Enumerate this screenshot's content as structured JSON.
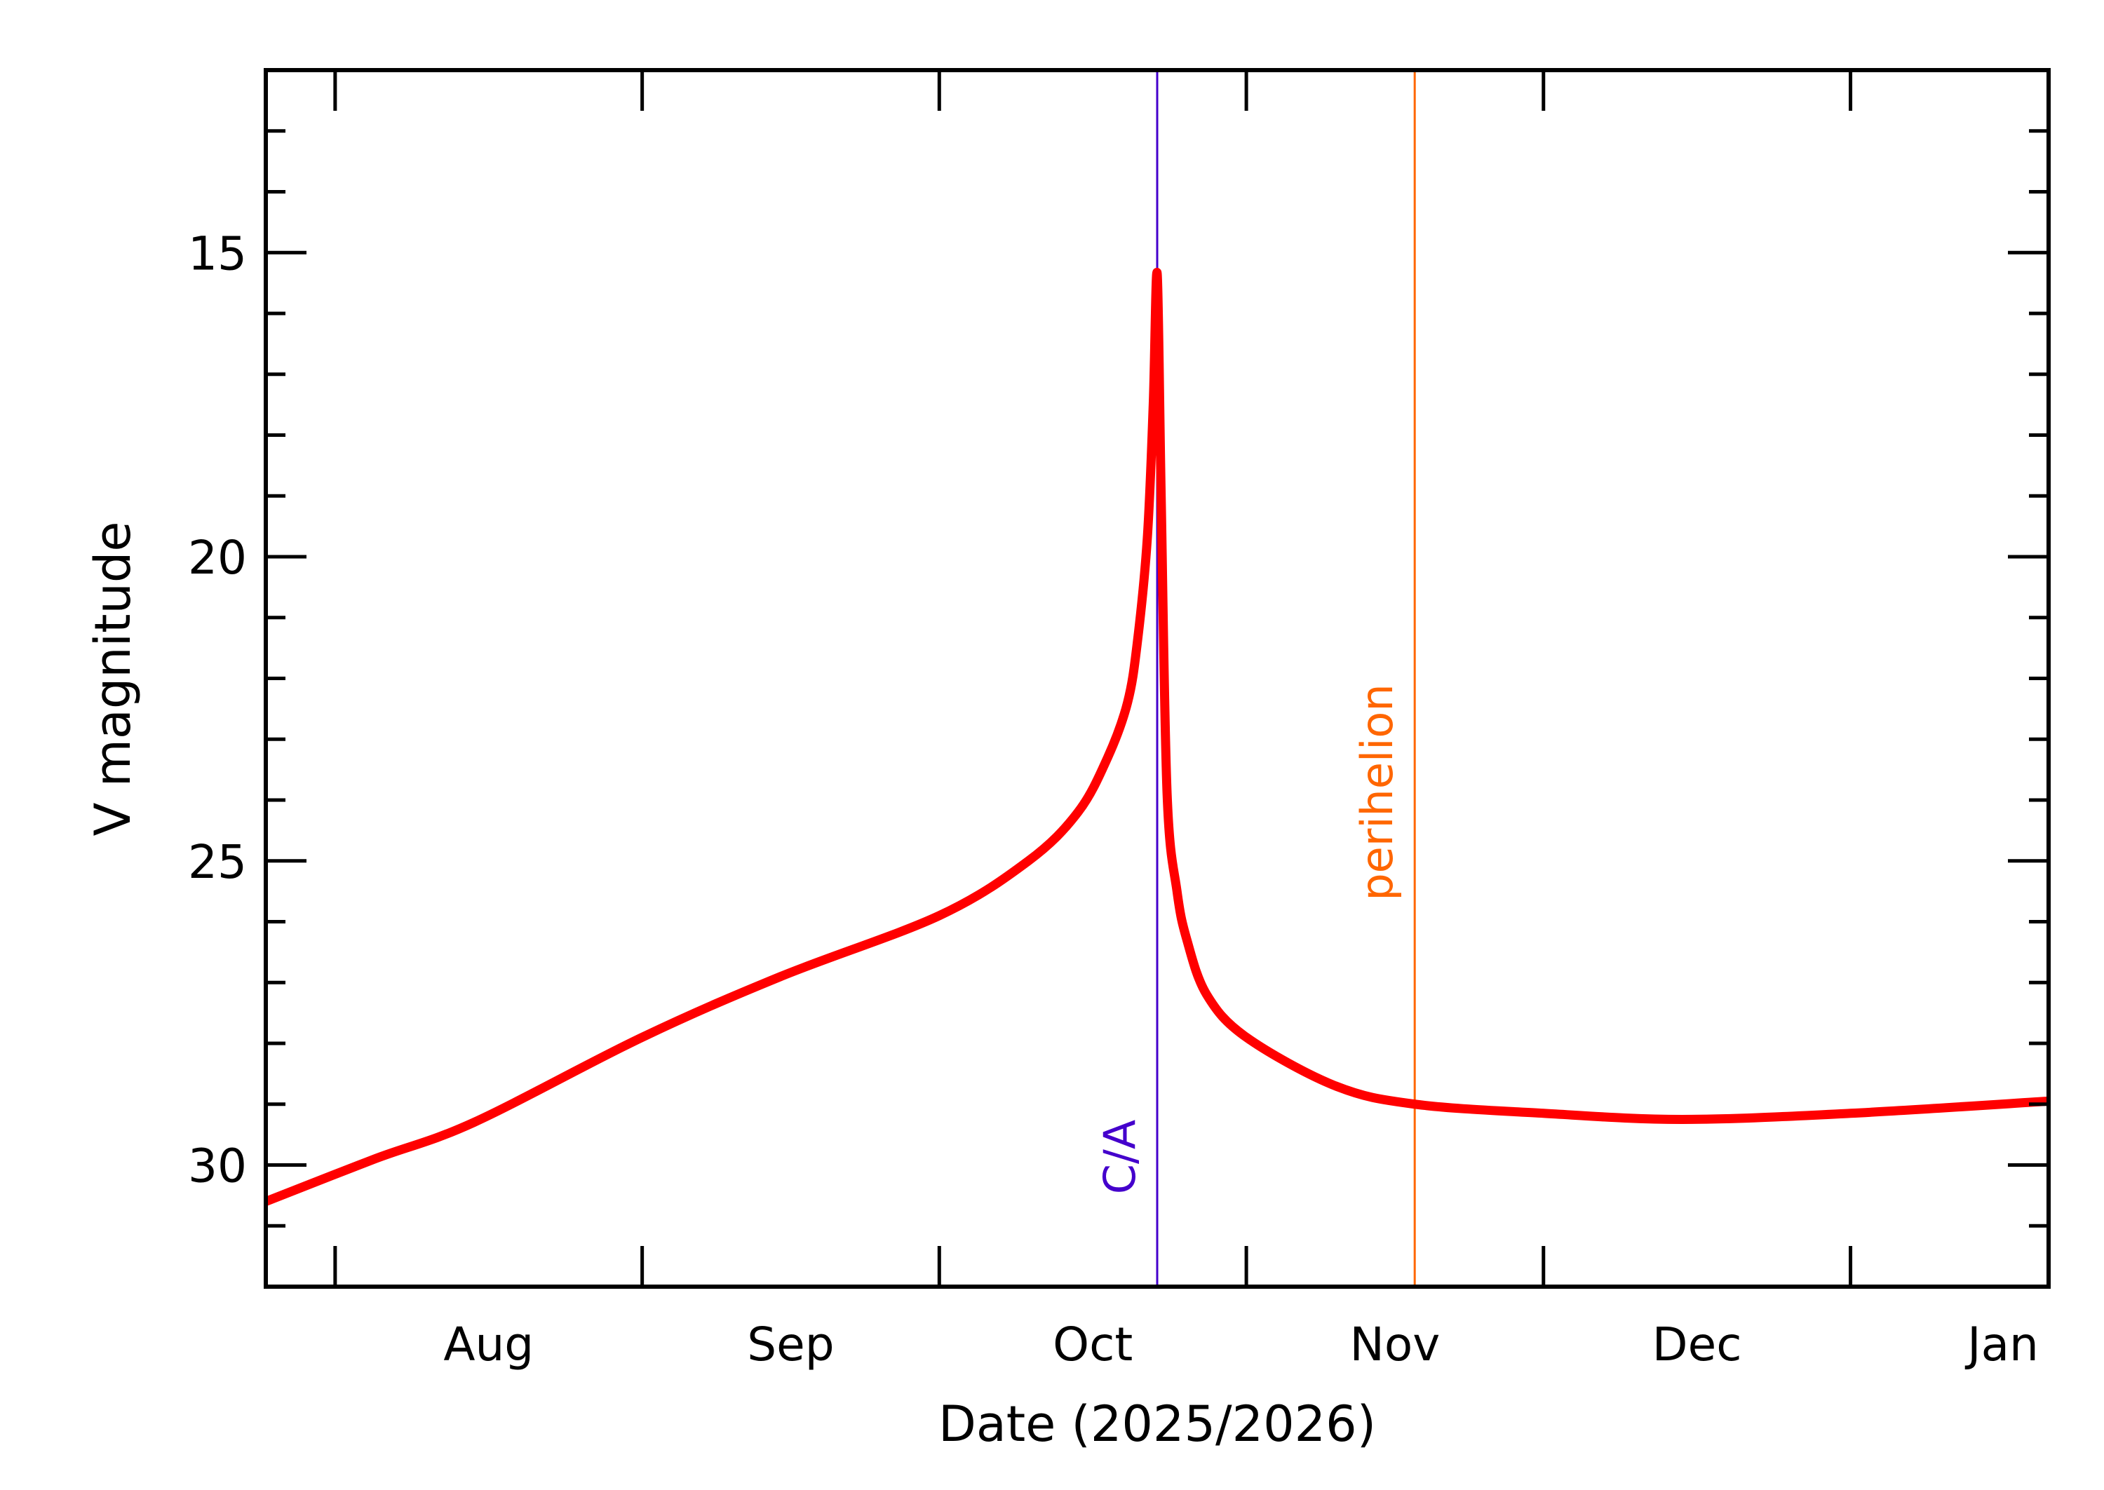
{
  "chart_data": {
    "type": "line",
    "xlabel": "Date (2025/2026)",
    "ylabel": "V magnitude",
    "xlim": [
      "2025-07-25",
      "2026-01-21"
    ],
    "ylim": [
      32,
      12
    ],
    "y_inverted": true,
    "grid": false,
    "x_ticks": [
      {
        "date": "2025-08-01",
        "label": "Aug"
      },
      {
        "date": "2025-09-01",
        "label": "Sep"
      },
      {
        "date": "2025-10-01",
        "label": "Oct"
      },
      {
        "date": "2025-11-01",
        "label": "Nov"
      },
      {
        "date": "2025-12-01",
        "label": "Dec"
      },
      {
        "date": "2026-01-01",
        "label": "Jan"
      }
    ],
    "y_ticks": [
      15,
      20,
      25,
      30
    ],
    "y_minor_step": 1,
    "series": [
      {
        "color": "#ff0000",
        "x": [
          "2025-07-25",
          "2025-08-05",
          "2025-08-15",
          "2025-09-01",
          "2025-09-15",
          "2025-10-01",
          "2025-10-10",
          "2025-10-15",
          "2025-10-18",
          "2025-10-20",
          "2025-10-21",
          "2025-10-22",
          "2025-10-22.6",
          "2025-10-23",
          "2025-10-23.4",
          "2025-10-24",
          "2025-10-25",
          "2025-10-26",
          "2025-10-28",
          "2025-11-01",
          "2025-11-10",
          "2025-11-18",
          "2025-12-01",
          "2025-12-15",
          "2026-01-01",
          "2026-01-21"
        ],
        "y": [
          30.6,
          29.9,
          29.3,
          27.9,
          26.9,
          25.9,
          25.0,
          24.2,
          23.3,
          22.4,
          21.4,
          19.7,
          17.5,
          15.35,
          19.0,
          23.9,
          25.5,
          26.3,
          27.2,
          27.9,
          28.7,
          29.0,
          29.15,
          29.25,
          29.15,
          28.95
        ]
      }
    ],
    "annotations": [
      {
        "label": "C/A",
        "date": "2025-10-23",
        "color": "#4400cc"
      },
      {
        "label": "perihelion",
        "date": "2025-11-18",
        "color": "#ff6600"
      }
    ]
  }
}
